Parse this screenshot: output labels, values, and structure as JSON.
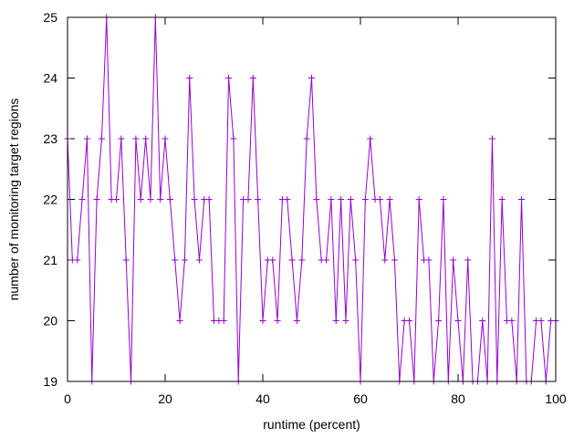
{
  "chart_data": {
    "type": "line",
    "title": "",
    "xlabel": "runtime (percent)",
    "ylabel": "number of monitoring target regions",
    "xlim": [
      0,
      100
    ],
    "ylim": [
      19,
      25
    ],
    "xticks": [
      0,
      20,
      40,
      60,
      80,
      100
    ],
    "yticks": [
      19,
      20,
      21,
      22,
      23,
      24,
      25
    ],
    "grid": false,
    "legend": "none",
    "series": [
      {
        "color": "#9400d3",
        "marker": "plus",
        "x": [
          0,
          1,
          2,
          3,
          4,
          5,
          6,
          7,
          8,
          9,
          10,
          11,
          12,
          13,
          14,
          15,
          16,
          17,
          18,
          19,
          20,
          21,
          22,
          23,
          24,
          25,
          26,
          27,
          28,
          29,
          30,
          31,
          32,
          33,
          34,
          35,
          36,
          37,
          38,
          39,
          40,
          41,
          42,
          43,
          44,
          45,
          46,
          47,
          48,
          49,
          50,
          51,
          52,
          53,
          54,
          55,
          56,
          57,
          58,
          59,
          60,
          61,
          62,
          63,
          64,
          65,
          66,
          67,
          68,
          69,
          70,
          71,
          72,
          73,
          74,
          75,
          76,
          77,
          78,
          79,
          80,
          81,
          82,
          83,
          84,
          85,
          86,
          87,
          88,
          89,
          90,
          91,
          92,
          93,
          94,
          95,
          96,
          97,
          98,
          99,
          100
        ],
        "y": [
          23,
          21,
          21,
          22,
          23,
          19,
          22,
          23,
          25,
          22,
          22,
          23,
          21,
          19,
          23,
          22,
          23,
          22,
          25,
          22,
          23,
          22,
          21,
          20,
          21,
          24,
          22,
          21,
          22,
          22,
          20,
          20,
          20,
          24,
          23,
          19,
          22,
          22,
          24,
          22,
          20,
          21,
          21,
          20,
          22,
          22,
          21,
          20,
          21,
          23,
          24,
          22,
          21,
          21,
          22,
          20,
          22,
          20,
          22,
          21,
          19,
          22,
          23,
          22,
          22,
          21,
          22,
          21,
          19,
          20,
          20,
          19,
          22,
          21,
          21,
          19,
          20,
          22,
          19,
          21,
          20,
          19,
          21,
          19,
          19,
          20,
          19,
          23,
          19,
          22,
          20,
          20,
          19,
          22,
          19,
          19,
          20,
          20,
          19,
          20,
          20
        ]
      }
    ]
  }
}
